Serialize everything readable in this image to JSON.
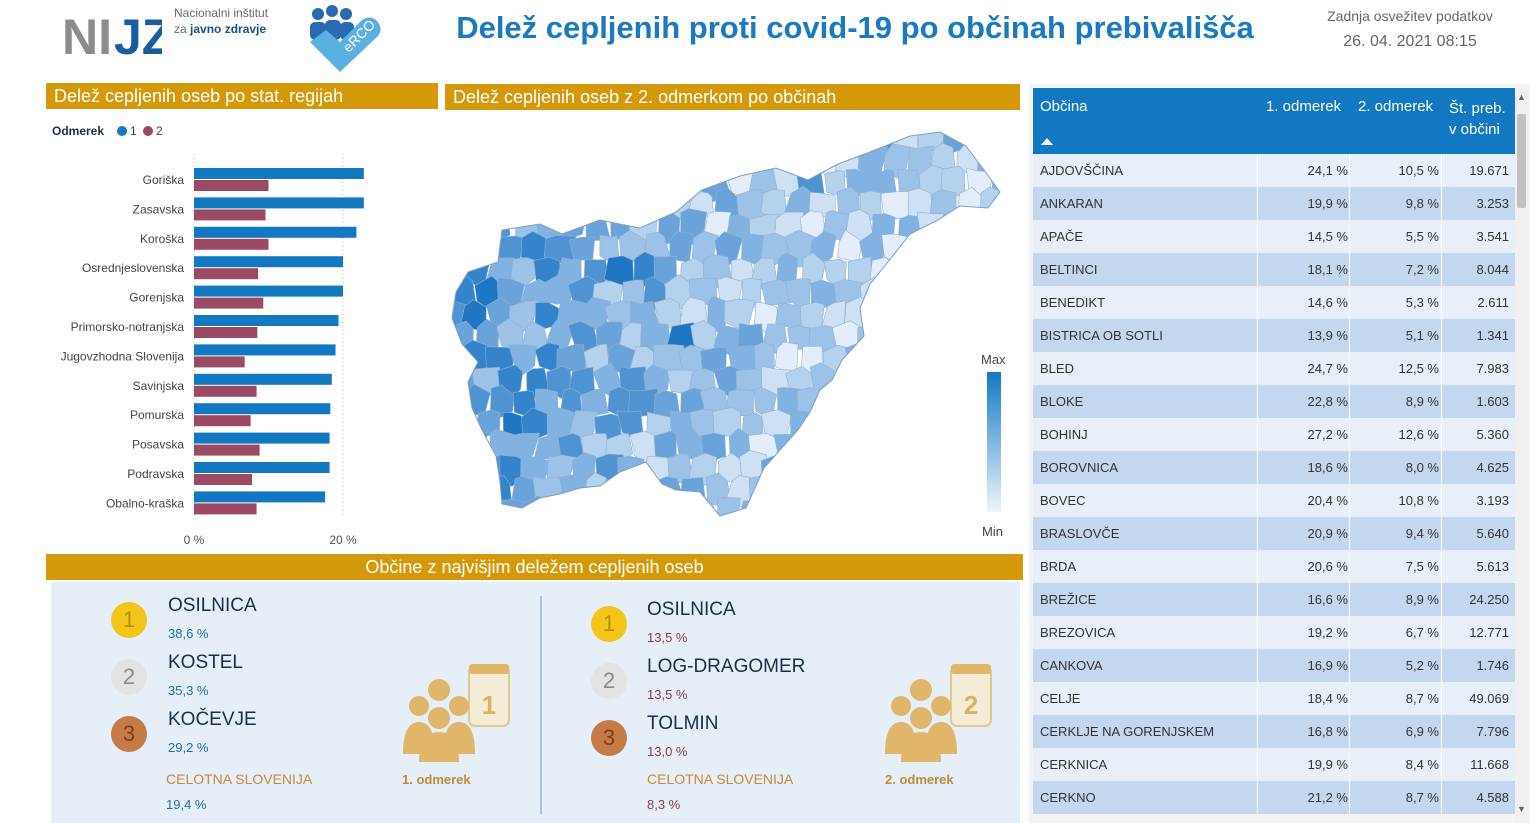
{
  "header": {
    "logo_nijz": "NIJZ",
    "logo_line1": "Nacionalni inštitut",
    "logo_line2_prefix": "za",
    "logo_line2_bold": "javno zdravje",
    "logo_erco": "eRCO",
    "title": "Delež cepljenih proti covid-19 po občinah prebivališča",
    "refresh_label": "Zadnja osvežitev podatkov",
    "refresh_value": "26. 04. 2021 08:15"
  },
  "colors": {
    "dose1": "#1378c2",
    "dose2": "#9c4a64",
    "header_gold": "#d4990a",
    "title_blue": "#1a7ac0"
  },
  "regions_section": {
    "title": "Delež cepljenih oseb po stat. regijah"
  },
  "map_section": {
    "title": "Delež cepljenih oseb z 2. odmerkom po občinah",
    "legend_max": "Max",
    "legend_min": "Min"
  },
  "chart_data": {
    "type": "bar",
    "orientation": "horizontal",
    "legend_title": "Odmerek",
    "legend_placement": "top-left",
    "categories": [
      "Goriška",
      "Zasavska",
      "Koroška",
      "Osrednjeslovenska",
      "Gorenjska",
      "Primorsko-notranjska",
      "Jugovzhodna Slovenija",
      "Savinjska",
      "Pomurska",
      "Posavska",
      "Podravska",
      "Obalno-kraška"
    ],
    "series": [
      {
        "name": "1",
        "values": [
          22.8,
          22.8,
          21.8,
          20.0,
          20.0,
          19.4,
          19.0,
          18.5,
          18.3,
          18.2,
          18.2,
          17.6
        ]
      },
      {
        "name": "2",
        "values": [
          10.0,
          9.6,
          10.0,
          8.6,
          9.3,
          8.5,
          6.8,
          8.4,
          7.6,
          8.8,
          7.8,
          8.4
        ]
      }
    ],
    "x_ticks": [
      "0 %",
      "20 %"
    ],
    "xlim": [
      0,
      30
    ],
    "grid": "vertical-dotted"
  },
  "top_section": {
    "title": "Občine z najvišjim deležem cepljenih oseb",
    "dose1": {
      "items": [
        {
          "rank": "1",
          "name": "OSILNICA",
          "value": "38,6 %"
        },
        {
          "rank": "2",
          "name": "KOSTEL",
          "value": "35,3 %"
        },
        {
          "rank": "3",
          "name": "KOČEVJE",
          "value": "29,2 %"
        }
      ],
      "total_label": "CELOTNA SLOVENIJA",
      "total_value": "19,4 %",
      "caption": "1. odmerek",
      "badge": "1"
    },
    "dose2": {
      "items": [
        {
          "rank": "1",
          "name": "OSILNICA",
          "value": "13,5 %"
        },
        {
          "rank": "2",
          "name": "LOG-DRAGOMER",
          "value": "13,5 %"
        },
        {
          "rank": "3",
          "name": "TOLMIN",
          "value": "13,0 %"
        }
      ],
      "total_label": "CELOTNA SLOVENIJA",
      "total_value": "8,3 %",
      "caption": "2. odmerek",
      "badge": "2"
    }
  },
  "table": {
    "columns": {
      "name": "Občina",
      "dose1": "1. odmerek",
      "dose2": "2. odmerek",
      "pop_line1": "Št. preb.",
      "pop_line2": "v občini"
    },
    "rows": [
      [
        "AJDOVŠČINA",
        "24,1 %",
        "10,5 %",
        "19.671"
      ],
      [
        "ANKARAN",
        "19,9 %",
        "9,8 %",
        "3.253"
      ],
      [
        "APAČE",
        "14,5 %",
        "5,5 %",
        "3.541"
      ],
      [
        "BELTINCI",
        "18,1 %",
        "7,2 %",
        "8.044"
      ],
      [
        "BENEDIKT",
        "14,6 %",
        "5,3 %",
        "2.611"
      ],
      [
        "BISTRICA OB SOTLI",
        "13,9 %",
        "5,1 %",
        "1.341"
      ],
      [
        "BLED",
        "24,7 %",
        "12,5 %",
        "7.983"
      ],
      [
        "BLOKE",
        "22,8 %",
        "8,9 %",
        "1.603"
      ],
      [
        "BOHINJ",
        "27,2 %",
        "12,6 %",
        "5.360"
      ],
      [
        "BOROVNICA",
        "18,6 %",
        "8,0 %",
        "4.625"
      ],
      [
        "BOVEC",
        "20,4 %",
        "10,8 %",
        "3.193"
      ],
      [
        "BRASLOVČE",
        "20,9 %",
        "9,4 %",
        "5.640"
      ],
      [
        "BRDA",
        "20,6 %",
        "7,5 %",
        "5.613"
      ],
      [
        "BREŽICE",
        "16,6 %",
        "8,9 %",
        "24.250"
      ],
      [
        "BREZOVICA",
        "19,2 %",
        "6,7 %",
        "12.771"
      ],
      [
        "CANKOVA",
        "16,9 %",
        "5,2 %",
        "1.746"
      ],
      [
        "CELJE",
        "18,4 %",
        "8,7 %",
        "49.069"
      ],
      [
        "CERKLJE NA GORENJSKEM",
        "16,8 %",
        "6,9 %",
        "7.796"
      ],
      [
        "CERKNICA",
        "19,9 %",
        "8,4 %",
        "11.668"
      ],
      [
        "CERKNO",
        "21,2 %",
        "8,7 %",
        "4.588"
      ]
    ]
  }
}
